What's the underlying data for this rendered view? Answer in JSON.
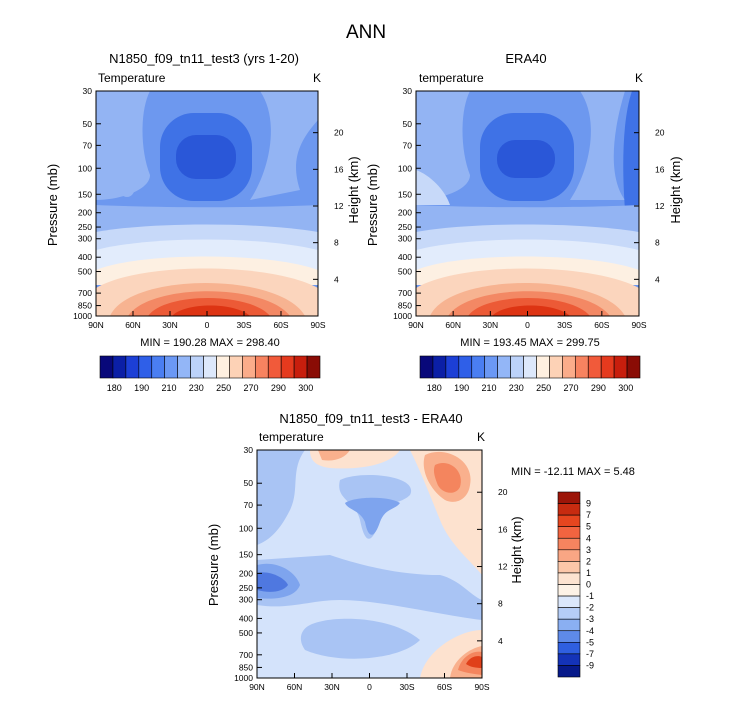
{
  "figure_title": "ANN",
  "panels": [
    {
      "id": "model",
      "title": "N1850_f09_tn11_test3 (yrs 1-20)",
      "left_label": "Temperature",
      "units": "K",
      "ylabel": "Pressure (mb)",
      "right_label": "Height (km)",
      "minmax": "MIN = 190.28   MAX = 298.40"
    },
    {
      "id": "obs",
      "title": "ERA40",
      "left_label": "temperature",
      "units": "K",
      "ylabel": "Pressure (mb)",
      "right_label": "Height (km)",
      "minmax": "MIN = 193.45   MAX = 299.75"
    },
    {
      "id": "diff",
      "title": "N1850_f09_tn11_test3 - ERA40",
      "left_label": "temperature",
      "units": "K",
      "ylabel": "Pressure (mb)",
      "right_label": "Height (km)",
      "minmax": "MIN = -12.11   MAX =   5.48"
    }
  ],
  "chart_data": [
    {
      "type": "heatmap",
      "title": "N1850_f09_tn11_test3 (yrs 1-20)",
      "variable": "Temperature",
      "units": "K",
      "xlabel": "",
      "ylabel": "Pressure (mb)",
      "y2label": "Height (km)",
      "x_ticks": [
        "90N",
        "60N",
        "30N",
        "0",
        "30S",
        "60S",
        "90S"
      ],
      "y_ticks": [
        "30",
        "50",
        "70",
        "100",
        "150",
        "200",
        "250",
        "300",
        "400",
        "500",
        "700",
        "850",
        "1000"
      ],
      "y2_ticks": [
        "20",
        "16",
        "12",
        "8",
        "4"
      ],
      "min": 190.28,
      "max": 298.4
    },
    {
      "type": "heatmap",
      "title": "ERA40",
      "variable": "temperature",
      "units": "K",
      "xlabel": "",
      "ylabel": "Pressure (mb)",
      "y2label": "Height (km)",
      "x_ticks": [
        "90N",
        "60N",
        "30N",
        "0",
        "30S",
        "60S",
        "90S"
      ],
      "y_ticks": [
        "30",
        "50",
        "70",
        "100",
        "150",
        "200",
        "250",
        "300",
        "400",
        "500",
        "700",
        "850",
        "1000"
      ],
      "y2_ticks": [
        "20",
        "16",
        "12",
        "8",
        "4"
      ],
      "min": 193.45,
      "max": 299.75
    },
    {
      "type": "heatmap",
      "title": "N1850_f09_tn11_test3 - ERA40",
      "variable": "temperature",
      "units": "K",
      "xlabel": "",
      "ylabel": "Pressure (mb)",
      "y2label": "Height (km)",
      "x_ticks": [
        "90N",
        "60N",
        "30N",
        "0",
        "30S",
        "60S",
        "90S"
      ],
      "y_ticks": [
        "30",
        "50",
        "70",
        "100",
        "150",
        "200",
        "250",
        "300",
        "400",
        "500",
        "700",
        "850",
        "1000"
      ],
      "y2_ticks": [
        "20",
        "16",
        "12",
        "8",
        "4"
      ],
      "min": -12.11,
      "max": 5.48
    }
  ],
  "colorbar_abs": {
    "labels": [
      "180",
      "190",
      "210",
      "230",
      "250",
      "270",
      "290",
      "300"
    ],
    "colors": [
      "#08087a",
      "#0b1fa6",
      "#1c3fd6",
      "#2f5fe8",
      "#4a7ef2",
      "#6b98f4",
      "#93b6f7",
      "#bcd2f9",
      "#dde8fb",
      "#fff0e0",
      "#fdd2b6",
      "#fbac8a",
      "#f78360",
      "#f15a3a",
      "#e53a1e",
      "#c81e0d",
      "#8a0c05"
    ]
  },
  "colorbar_diff": {
    "labels": [
      "9",
      "7",
      "5",
      "4",
      "3",
      "2",
      "1",
      "0",
      "-1",
      "-2",
      "-3",
      "-4",
      "-5",
      "-7",
      "-9"
    ],
    "colors": [
      "#9c1508",
      "#c72b10",
      "#e6461f",
      "#f26440",
      "#f6845f",
      "#f9a684",
      "#fcc7a9",
      "#fde3d0",
      "#fdf2e6",
      "#dbe7fb",
      "#b5cdf7",
      "#8aaff2",
      "#5e8ae9",
      "#2f5fe0",
      "#1433b8",
      "#071a8a"
    ]
  },
  "field_colors": {
    "deep": "#3f72e6",
    "mid": "#6d98ef",
    "light": "#93b4f3",
    "pale": "#c7d9f9",
    "paler": "#e2ecfc",
    "cream": "#fdf0e2",
    "peach": "#fbd5bd",
    "salmon": "#f7b391",
    "coral": "#f38864",
    "red": "#ec5a36",
    "deepred": "#dd3413",
    "diff_pos1": "#fde2cf",
    "diff_pos2": "#f9b08d",
    "diff_pos3": "#f4855e",
    "diff_pos4": "#e0401a",
    "diff_neg1": "#d4e3fb",
    "diff_neg2": "#a9c4f4",
    "diff_neg3": "#7ea4ee",
    "diff_neg4": "#4f78e0"
  }
}
